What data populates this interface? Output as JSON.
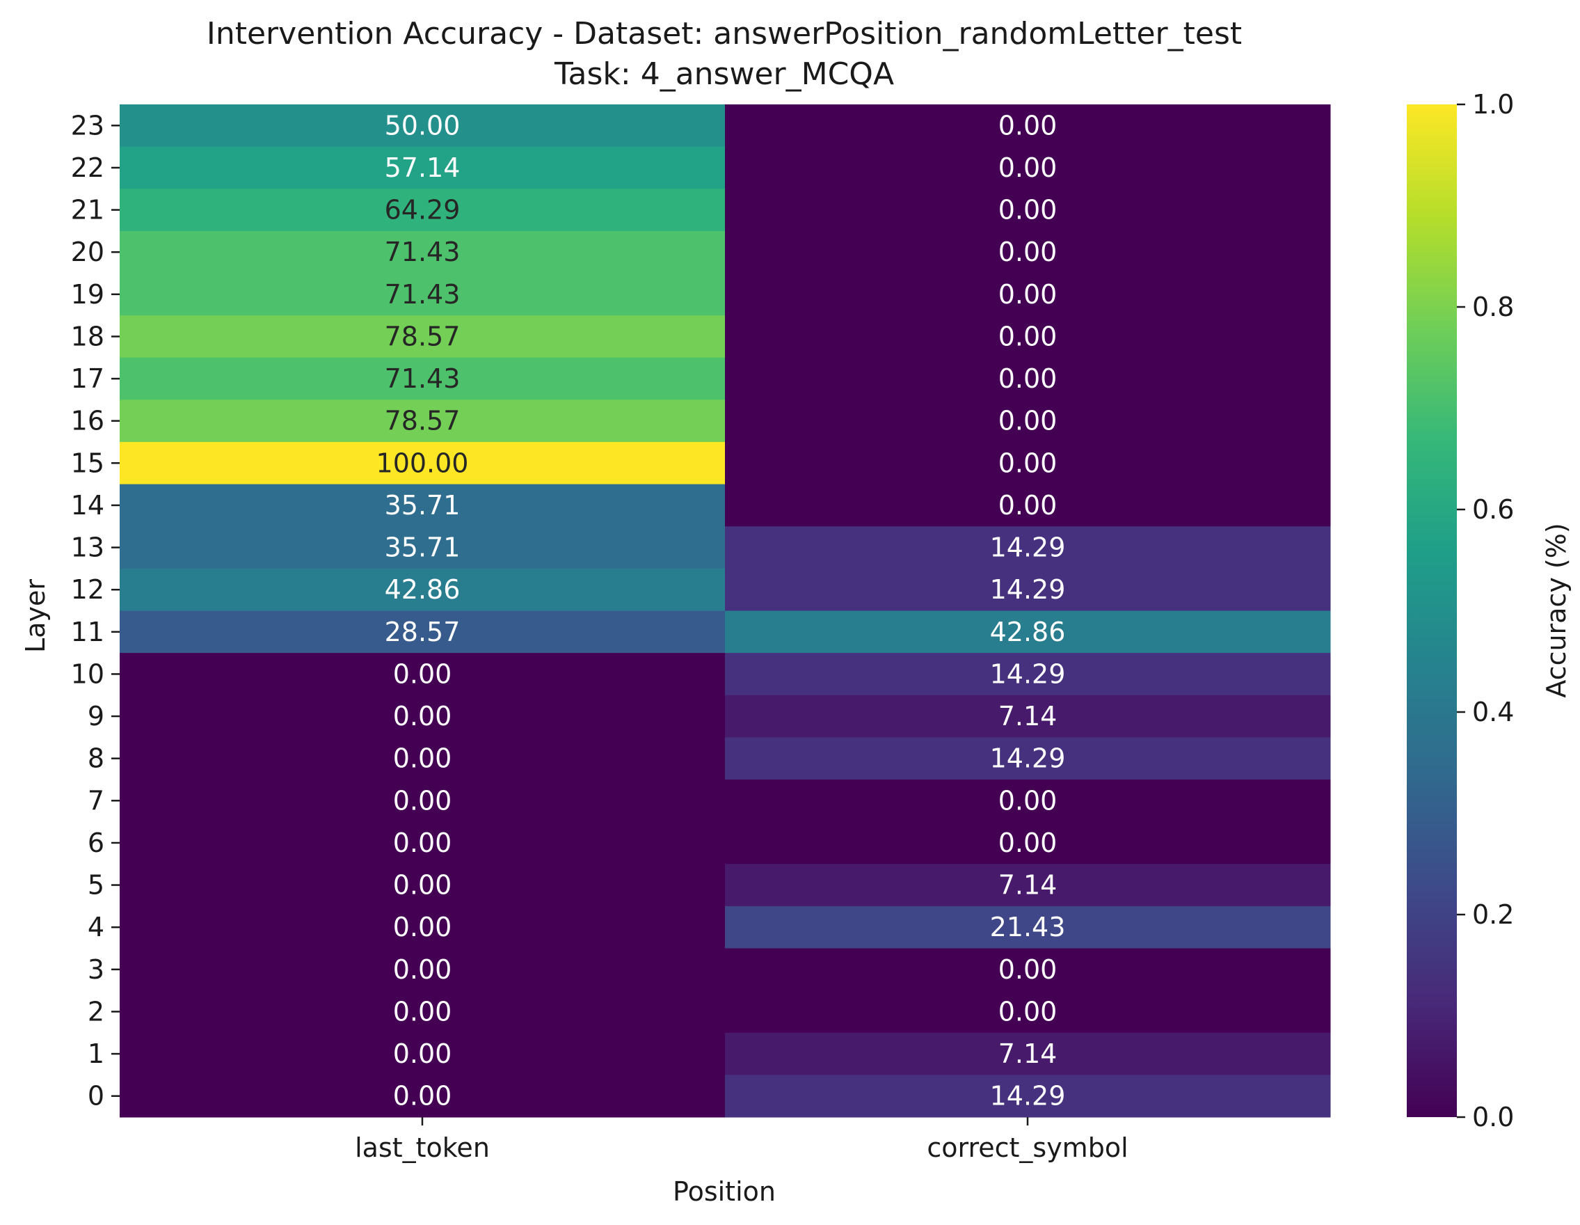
{
  "chart_data": {
    "type": "heatmap",
    "title_line1": "Intervention Accuracy - Dataset: answerPosition_randomLetter_test",
    "title_line2": "Task: 4_answer_MCQA",
    "xlabel": "Position",
    "ylabel": "Layer",
    "colorbar_label": "Accuracy (%)",
    "columns": [
      "last_token",
      "correct_symbol"
    ],
    "rows": [
      "23",
      "22",
      "21",
      "20",
      "19",
      "18",
      "17",
      "16",
      "15",
      "14",
      "13",
      "12",
      "11",
      "10",
      "9",
      "8",
      "7",
      "6",
      "5",
      "4",
      "3",
      "2",
      "1",
      "0"
    ],
    "values": [
      [
        50.0,
        0.0
      ],
      [
        57.14,
        0.0
      ],
      [
        64.29,
        0.0
      ],
      [
        71.43,
        0.0
      ],
      [
        71.43,
        0.0
      ],
      [
        78.57,
        0.0
      ],
      [
        71.43,
        0.0
      ],
      [
        78.57,
        0.0
      ],
      [
        100.0,
        0.0
      ],
      [
        35.71,
        0.0
      ],
      [
        35.71,
        14.29
      ],
      [
        42.86,
        14.29
      ],
      [
        28.57,
        42.86
      ],
      [
        0.0,
        14.29
      ],
      [
        0.0,
        7.14
      ],
      [
        0.0,
        14.29
      ],
      [
        0.0,
        0.0
      ],
      [
        0.0,
        0.0
      ],
      [
        0.0,
        7.14
      ],
      [
        0.0,
        21.43
      ],
      [
        0.0,
        0.0
      ],
      [
        0.0,
        0.0
      ],
      [
        0.0,
        7.14
      ],
      [
        0.0,
        14.29
      ]
    ],
    "colorbar_range": [
      0.0,
      1.0
    ],
    "colorbar_ticks": [
      "0.0",
      "0.2",
      "0.4",
      "0.6",
      "0.8",
      "1.0"
    ],
    "colormap": "viridis",
    "colormap_stops": [
      "#440154",
      "#482878",
      "#3e4989",
      "#31688e",
      "#26828e",
      "#1f9e89",
      "#35b779",
      "#6ece58",
      "#b5de2b",
      "#fde725"
    ]
  }
}
